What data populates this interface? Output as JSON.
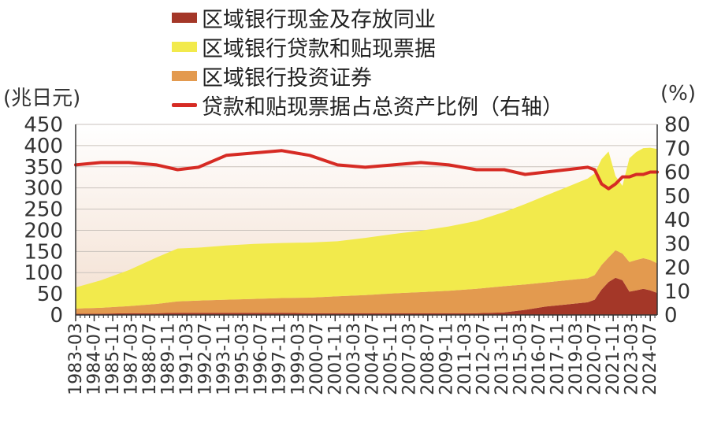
{
  "units": {
    "left": "(兆日元)",
    "right": "(%)"
  },
  "legend": [
    {
      "label": "区域银行现金及存放同业",
      "color": "#a43728",
      "kind": "area"
    },
    {
      "label": "区域银行贷款和贴现票据",
      "color": "#f2ea4c",
      "kind": "area"
    },
    {
      "label": "区域银行投资证券",
      "color": "#e39a4f",
      "kind": "area"
    },
    {
      "label": "贷款和贴现票据占总资产比例（右轴）",
      "color": "#d62b24",
      "kind": "line"
    }
  ],
  "chart_data": {
    "type": "area",
    "stacked": true,
    "y_left": {
      "min": 0,
      "max": 450,
      "ticks": [
        0,
        50,
        100,
        150,
        200,
        250,
        300,
        350,
        400,
        450
      ]
    },
    "y_right": {
      "min": 0,
      "max": 80,
      "ticks": [
        0,
        10,
        20,
        30,
        40,
        50,
        60,
        70,
        80
      ]
    },
    "x_tick_labels": [
      "1983-03",
      "1984-07",
      "1985-11",
      "1987-03",
      "1988-07",
      "1989-11",
      "1991-03",
      "1992-07",
      "1993-11",
      "1995-03",
      "1996-07",
      "1997-11",
      "1999-03",
      "2000-07",
      "2001-11",
      "2003-03",
      "2004-07",
      "2005-11",
      "2007-03",
      "2008-07",
      "2009-11",
      "2011-03",
      "2012-07",
      "2013-11",
      "2015-03",
      "2016-07",
      "2017-11",
      "2019-03",
      "2020-07",
      "2021-11",
      "2023-03",
      "2024-07"
    ],
    "x": [
      "1983-03",
      "1985-01",
      "1987-01",
      "1989-01",
      "1990-07",
      "1992-01",
      "1994-01",
      "1996-01",
      "1998-01",
      "2000-01",
      "2002-01",
      "2004-01",
      "2006-01",
      "2008-01",
      "2010-01",
      "2012-01",
      "2014-01",
      "2015-07",
      "2017-01",
      "2018-07",
      "2020-01",
      "2020-07",
      "2021-01",
      "2021-07",
      "2022-01",
      "2022-07",
      "2023-01",
      "2023-07",
      "2024-01",
      "2024-07",
      "2025-01"
    ],
    "series": [
      {
        "name": "区域银行现金及存放同业",
        "axis": "left",
        "values": [
          3,
          3,
          4,
          4,
          5,
          5,
          5,
          5,
          5,
          4,
          4,
          4,
          4,
          4,
          4,
          4,
          6,
          12,
          20,
          25,
          30,
          36,
          60,
          78,
          88,
          82,
          55,
          58,
          62,
          58,
          52
        ]
      },
      {
        "name": "区域银行投资证券",
        "axis": "left",
        "values": [
          12,
          14,
          17,
          22,
          27,
          29,
          31,
          33,
          35,
          37,
          40,
          43,
          47,
          50,
          53,
          58,
          62,
          60,
          57,
          57,
          57,
          58,
          58,
          58,
          65,
          63,
          70,
          72,
          72,
          72,
          70
        ]
      },
      {
        "name": "区域银行贷款和贴现票据",
        "axis": "left",
        "values": [
          50,
          65,
          85,
          110,
          125,
          125,
          128,
          130,
          130,
          130,
          130,
          135,
          140,
          145,
          152,
          160,
          175,
          190,
          205,
          220,
          235,
          240,
          250,
          250,
          175,
          160,
          245,
          255,
          260,
          265,
          270
        ]
      },
      {
        "name": "贷款和贴现票据占总资产比例（右轴）",
        "axis": "right",
        "values": [
          63,
          64,
          64,
          63,
          61,
          62,
          67,
          68,
          69,
          67,
          63,
          62,
          63,
          64,
          63,
          61,
          61,
          59,
          60,
          61,
          62,
          61,
          55,
          53,
          55,
          58,
          58,
          59,
          59,
          60,
          60
        ]
      }
    ]
  }
}
